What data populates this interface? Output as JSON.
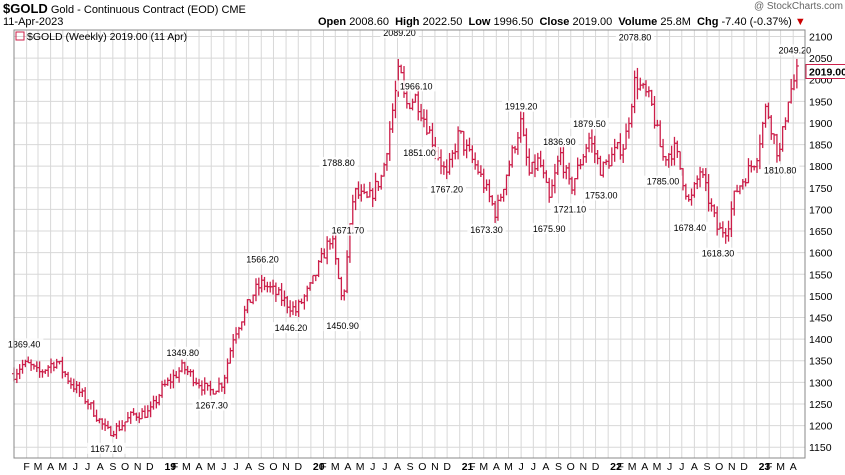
{
  "header": {
    "symbol": "$GOLD",
    "name": "Gold - Continuous Contract (EOD)",
    "exchange": "CME",
    "date": "11-Apr-2023",
    "open_label": "Open",
    "open": "2008.60",
    "high_label": "High",
    "high": "2022.50",
    "low_label": "Low",
    "low": "1996.50",
    "close_label": "Close",
    "close": "2019.00",
    "volume_label": "Volume",
    "volume": "25.8M",
    "chg_label": "Chg",
    "chg": "-7.40 (-0.37%)",
    "credit": "@ StockCharts.com"
  },
  "colors": {
    "bars": "#cc1f4a",
    "grid": "#d8d8d8",
    "last_box": "#cc1f4a"
  },
  "chart_data": {
    "type": "ohlc",
    "legend": "$GOLD (Weekly) 2019.00 (11 Apr)",
    "last_price_label": "2019.00",
    "last_price": 2019.0,
    "ylim": [
      1125,
      2115
    ],
    "y_ticks": [
      1150,
      1200,
      1250,
      1300,
      1350,
      1400,
      1450,
      1500,
      1550,
      1600,
      1650,
      1700,
      1750,
      1800,
      1850,
      1900,
      1950,
      2000,
      2050,
      2100
    ],
    "x_ticks": [
      "F",
      "M",
      "A",
      "M",
      "J",
      "J",
      "A",
      "S",
      "O",
      "N",
      "D",
      "19",
      "F",
      "M",
      "A",
      "M",
      "J",
      "J",
      "A",
      "S",
      "O",
      "N",
      "D",
      "20",
      "F",
      "M",
      "A",
      "M",
      "J",
      "J",
      "A",
      "S",
      "O",
      "N",
      "D",
      "21",
      "F",
      "M",
      "A",
      "M",
      "J",
      "J",
      "A",
      "S",
      "O",
      "N",
      "D",
      "22",
      "F",
      "M",
      "A",
      "M",
      "J",
      "J",
      "A",
      "S",
      "O",
      "N",
      "D",
      "23",
      "F",
      "M",
      "A"
    ],
    "x_domain": [
      "2018-01-01",
      "2023-04-30"
    ],
    "anchors": [
      {
        "date": "2018-01-01",
        "price": 1320
      },
      {
        "date": "2018-01-20",
        "price": 1340
      },
      {
        "date": "2018-02-08",
        "price": 1340
      },
      {
        "date": "2018-03-01",
        "price": 1320
      },
      {
        "date": "2018-04-14",
        "price": 1350
      },
      {
        "date": "2018-05-20",
        "price": 1300
      },
      {
        "date": "2018-07-01",
        "price": 1255
      },
      {
        "date": "2018-08-17",
        "price": 1185
      },
      {
        "date": "2018-09-15",
        "price": 1195
      },
      {
        "date": "2018-10-20",
        "price": 1225
      },
      {
        "date": "2018-12-01",
        "price": 1230
      },
      {
        "date": "2018-12-31",
        "price": 1285
      },
      {
        "date": "2019-02-20",
        "price": 1335
      },
      {
        "date": "2019-04-25",
        "price": 1278
      },
      {
        "date": "2019-05-30",
        "price": 1300
      },
      {
        "date": "2019-06-25",
        "price": 1410
      },
      {
        "date": "2019-08-15",
        "price": 1510
      },
      {
        "date": "2019-09-05",
        "price": 1530
      },
      {
        "date": "2019-10-20",
        "price": 1495
      },
      {
        "date": "2019-11-25",
        "price": 1465
      },
      {
        "date": "2019-12-31",
        "price": 1520
      },
      {
        "date": "2020-02-20",
        "price": 1640
      },
      {
        "date": "2020-03-19",
        "price": 1480
      },
      {
        "date": "2020-04-15",
        "price": 1740
      },
      {
        "date": "2020-05-20",
        "price": 1720
      },
      {
        "date": "2020-06-25",
        "price": 1780
      },
      {
        "date": "2020-08-06",
        "price": 2030
      },
      {
        "date": "2020-08-20",
        "price": 1940
      },
      {
        "date": "2020-09-15",
        "price": 1960
      },
      {
        "date": "2020-10-10",
        "price": 1900
      },
      {
        "date": "2020-11-30",
        "price": 1775
      },
      {
        "date": "2020-12-31",
        "price": 1880
      },
      {
        "date": "2021-01-10",
        "price": 1850
      },
      {
        "date": "2021-02-15",
        "price": 1790
      },
      {
        "date": "2021-03-31",
        "price": 1690
      },
      {
        "date": "2021-04-25",
        "price": 1780
      },
      {
        "date": "2021-05-31",
        "price": 1900
      },
      {
        "date": "2021-06-20",
        "price": 1780
      },
      {
        "date": "2021-07-15",
        "price": 1815
      },
      {
        "date": "2021-08-09",
        "price": 1720
      },
      {
        "date": "2021-09-05",
        "price": 1830
      },
      {
        "date": "2021-09-30",
        "price": 1745
      },
      {
        "date": "2021-11-15",
        "price": 1865
      },
      {
        "date": "2021-12-15",
        "price": 1790
      },
      {
        "date": "2022-01-20",
        "price": 1835
      },
      {
        "date": "2022-02-10",
        "price": 1850
      },
      {
        "date": "2022-03-08",
        "price": 2000
      },
      {
        "date": "2022-04-15",
        "price": 1950
      },
      {
        "date": "2022-05-15",
        "price": 1820
      },
      {
        "date": "2022-06-15",
        "price": 1840
      },
      {
        "date": "2022-07-20",
        "price": 1710
      },
      {
        "date": "2022-08-15",
        "price": 1790
      },
      {
        "date": "2022-09-28",
        "price": 1650
      },
      {
        "date": "2022-10-20",
        "price": 1655
      },
      {
        "date": "2022-11-10",
        "price": 1740
      },
      {
        "date": "2022-12-31",
        "price": 1820
      },
      {
        "date": "2023-01-25",
        "price": 1940
      },
      {
        "date": "2023-02-25",
        "price": 1820
      },
      {
        "date": "2023-03-20",
        "price": 1960
      },
      {
        "date": "2023-04-10",
        "price": 2015
      }
    ],
    "annotations": [
      {
        "text": "1369.40",
        "date": "2018-01-26",
        "price": 1369.4,
        "pos": "above"
      },
      {
        "text": "1167.10",
        "date": "2018-08-16",
        "price": 1167.1,
        "pos": "below"
      },
      {
        "text": "1349.80",
        "date": "2019-02-20",
        "price": 1349.8,
        "pos": "above"
      },
      {
        "text": "1267.30",
        "date": "2019-05-02",
        "price": 1267.3,
        "pos": "below"
      },
      {
        "text": "1566.20",
        "date": "2019-09-04",
        "price": 1566.2,
        "pos": "above"
      },
      {
        "text": "1446.20",
        "date": "2019-11-13",
        "price": 1446.2,
        "pos": "below"
      },
      {
        "text": "1788.80",
        "date": "2020-03-09",
        "price": 1788.8,
        "pos": "above"
      },
      {
        "text": "1450.90",
        "date": "2020-03-19",
        "price": 1450.9,
        "pos": "below"
      },
      {
        "text": "1671.70",
        "date": "2020-04-01",
        "price": 1671.7,
        "pos": "below"
      },
      {
        "text": "2089.20",
        "date": "2020-08-06",
        "price": 2089.2,
        "pos": "above"
      },
      {
        "text": "1966.10",
        "date": "2020-09-16",
        "price": 1966.1,
        "pos": "above"
      },
      {
        "text": "1851.00",
        "date": "2020-09-24",
        "price": 1851.0,
        "pos": "below"
      },
      {
        "text": "1767.20",
        "date": "2020-11-30",
        "price": 1767.2,
        "pos": "below"
      },
      {
        "text": "1673.30",
        "date": "2021-03-08",
        "price": 1673.3,
        "pos": "below"
      },
      {
        "text": "1919.20",
        "date": "2021-06-01",
        "price": 1919.2,
        "pos": "above"
      },
      {
        "text": "1675.90",
        "date": "2021-08-09",
        "price": 1675.9,
        "pos": "below"
      },
      {
        "text": "1836.90",
        "date": "2021-09-03",
        "price": 1836.9,
        "pos": "above"
      },
      {
        "text": "1721.10",
        "date": "2021-09-29",
        "price": 1721.1,
        "pos": "below"
      },
      {
        "text": "1879.50",
        "date": "2021-11-16",
        "price": 1879.5,
        "pos": "above"
      },
      {
        "text": "1753.00",
        "date": "2021-12-15",
        "price": 1753.0,
        "pos": "below"
      },
      {
        "text": "2078.80",
        "date": "2022-03-08",
        "price": 2078.8,
        "pos": "above"
      },
      {
        "text": "1785.00",
        "date": "2022-05-16",
        "price": 1785.0,
        "pos": "below"
      },
      {
        "text": "1678.40",
        "date": "2022-07-21",
        "price": 1678.4,
        "pos": "below"
      },
      {
        "text": "1618.30",
        "date": "2022-09-28",
        "price": 1618.3,
        "pos": "below"
      },
      {
        "text": "1810.80",
        "date": "2023-02-28",
        "price": 1810.8,
        "pos": "below"
      },
      {
        "text": "2049.20",
        "date": "2023-04-05",
        "price": 2049.2,
        "pos": "above"
      }
    ]
  }
}
